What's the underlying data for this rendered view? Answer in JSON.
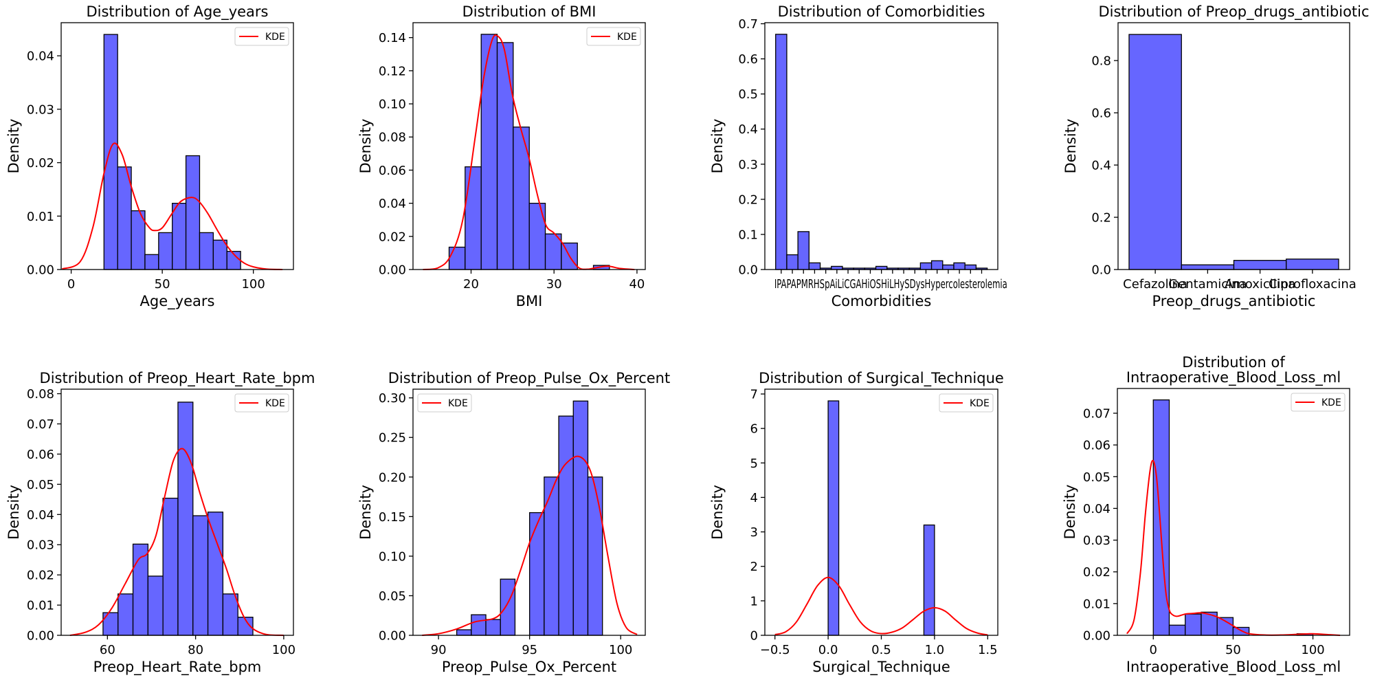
{
  "figure": {
    "background": "#ffffff",
    "bar_color": "#6666ff",
    "kde_color": "#ff0000"
  },
  "chart_data": [
    {
      "id": "age",
      "type": "bar",
      "title": [
        "Distribution of Age_years"
      ],
      "xlabel": "Age_years",
      "ylabel": "Density",
      "xlim": [
        -5.5,
        122
      ],
      "ylim": [
        0,
        0.0462
      ],
      "xticks": [
        0,
        50,
        100
      ],
      "xticklabels": [
        "0",
        "50",
        "100"
      ],
      "yticks": [
        0,
        0.01,
        0.02,
        0.03,
        0.04
      ],
      "yticklabels": [
        "0.00",
        "0.01",
        "0.02",
        "0.03",
        "0.04"
      ],
      "bin_edges": [
        18,
        25.5,
        33,
        40.5,
        48,
        55.5,
        63,
        70.5,
        78,
        85.5,
        93
      ],
      "values": [
        0.044,
        0.0192,
        0.011,
        0.0028,
        0.0069,
        0.0124,
        0.0213,
        0.0069,
        0.0055,
        0.0034
      ],
      "kde": {
        "x": [
          -5,
          5,
          12,
          18,
          23,
          28,
          33,
          38,
          43,
          46,
          50,
          55,
          60,
          66,
          70,
          75,
          80,
          85,
          90,
          95,
          100,
          107,
          116
        ],
        "y": [
          0.0001,
          0.0015,
          0.008,
          0.018,
          0.0235,
          0.0215,
          0.0155,
          0.0105,
          0.0078,
          0.0073,
          0.0078,
          0.0103,
          0.0127,
          0.0135,
          0.0128,
          0.0105,
          0.0075,
          0.0047,
          0.0026,
          0.0012,
          0.0005,
          0.0001,
          0.0
        ]
      },
      "legend": {
        "label": "KDE",
        "position": "upper right"
      }
    },
    {
      "id": "bmi",
      "type": "bar",
      "title": [
        "Distribution of BMI"
      ],
      "xlabel": "BMI",
      "ylabel": "Density",
      "xlim": [
        13,
        41
      ],
      "ylim": [
        0,
        0.149
      ],
      "xticks": [
        20,
        30,
        40
      ],
      "xticklabels": [
        "20",
        "30",
        "40"
      ],
      "yticks": [
        0,
        0.02,
        0.04,
        0.06,
        0.08,
        0.1,
        0.12,
        0.14
      ],
      "yticklabels": [
        "0.00",
        "0.02",
        "0.04",
        "0.06",
        "0.08",
        "0.10",
        "0.12",
        "0.14"
      ],
      "bin_edges": [
        17.35,
        19.28,
        21.22,
        23.15,
        25.08,
        27.02,
        28.95,
        30.88,
        32.82,
        34.75,
        36.68
      ],
      "values": [
        0.0135,
        0.062,
        0.142,
        0.137,
        0.086,
        0.04,
        0.0215,
        0.016,
        0,
        0.0025
      ],
      "kde": {
        "x": [
          14.2,
          16,
          17.5,
          19,
          20.5,
          21.5,
          22.5,
          23.2,
          24,
          25,
          26,
          27,
          28,
          29,
          30,
          31,
          32,
          33,
          34,
          35,
          36.5,
          38,
          39.7
        ],
        "y": [
          0,
          0.001,
          0.008,
          0.03,
          0.08,
          0.115,
          0.138,
          0.141,
          0.133,
          0.105,
          0.085,
          0.067,
          0.045,
          0.027,
          0.022,
          0.016,
          0.007,
          0.001,
          0.0002,
          0.001,
          0.002,
          0.0006,
          0
        ]
      },
      "legend": {
        "label": "KDE",
        "position": "upper right"
      }
    },
    {
      "id": "comorbidities",
      "type": "bar",
      "title": [
        "Distribution of Comorbidities"
      ],
      "xlabel": "Comorbidities",
      "ylabel": "Density",
      "xlim": [
        -1.47,
        19.45
      ],
      "ylim": [
        0,
        0.703
      ],
      "xticks": [
        0,
        1,
        2,
        3,
        4,
        5,
        6,
        7,
        8,
        9,
        10,
        11,
        12,
        13,
        14,
        15,
        16,
        17,
        18
      ],
      "xticklabels_note": "19 overlapping category labels, illegible; visible fragments start with 'IP' / 'AP' and end with '...lesterolemia'",
      "xticklabels_visible": "IPAPAPMRHSpAiLiCGAHiOSHiLHySDysHypercolesterolemia",
      "yticks": [
        0,
        0.1,
        0.2,
        0.3,
        0.4,
        0.5,
        0.6,
        0.7
      ],
      "yticklabels": [
        "0.0",
        "0.1",
        "0.2",
        "0.3",
        "0.4",
        "0.5",
        "0.6",
        "0.7"
      ],
      "bin_edges": [
        -0.5,
        0.5,
        1.5,
        2.5,
        3.5,
        4.5,
        5.5,
        6.5,
        7.5,
        8.5,
        9.5,
        10.5,
        11.5,
        12.5,
        13.5,
        14.5,
        15.5,
        16.5,
        17.5,
        18.5
      ],
      "values": [
        0.67,
        0.042,
        0.108,
        0.019,
        0.004,
        0.009,
        0.004,
        0.004,
        0.004,
        0.009,
        0.004,
        0.004,
        0.004,
        0.019,
        0.025,
        0.013,
        0.019,
        0.013,
        0.004
      ]
    },
    {
      "id": "antibiotic",
      "type": "bar",
      "title": [
        "Distribution of Preop_drugs_antibiotic"
      ],
      "xlabel": "Preop_drugs_antibiotic",
      "ylabel": "Density",
      "xlim": [
        -0.71,
        3.71
      ],
      "ylim": [
        0,
        0.945
      ],
      "xticks": [
        0,
        1,
        2,
        3
      ],
      "xticklabels": [
        "Cefazolina",
        "Gentamicina",
        "Amoxicilina",
        "Ciprofloxacina"
      ],
      "yticks": [
        0,
        0.2,
        0.4,
        0.6,
        0.8
      ],
      "yticklabels": [
        "0.0",
        "0.2",
        "0.4",
        "0.6",
        "0.8"
      ],
      "bin_edges": [
        -0.5,
        0.5,
        1.5,
        2.5,
        3.5
      ],
      "values": [
        0.9,
        0.018,
        0.035,
        0.04
      ]
    },
    {
      "id": "heart_rate",
      "type": "bar",
      "title": [
        "Distribution of Preop_Heart_Rate_bpm"
      ],
      "xlabel": "Preop_Heart_Rate_bpm",
      "ylabel": "Density",
      "xlim": [
        49.5,
        102.2
      ],
      "ylim": [
        0,
        0.0815
      ],
      "xticks": [
        60,
        80,
        100
      ],
      "xticklabels": [
        "60",
        "80",
        "100"
      ],
      "yticks": [
        0,
        0.01,
        0.02,
        0.03,
        0.04,
        0.05,
        0.06,
        0.07,
        0.08
      ],
      "yticklabels": [
        "0.00",
        "0.01",
        "0.02",
        "0.03",
        "0.04",
        "0.05",
        "0.06",
        "0.07",
        "0.08"
      ],
      "bin_edges": [
        59,
        62.4,
        65.8,
        69.2,
        72.6,
        76,
        79.4,
        82.8,
        86.2,
        89.6,
        93
      ],
      "values": [
        0.0075,
        0.0137,
        0.0302,
        0.0196,
        0.0454,
        0.0772,
        0.0396,
        0.0408,
        0.0137,
        0.006
      ],
      "kde": {
        "x": [
          51.5,
          55,
          58,
          61,
          64,
          67,
          69,
          71,
          73,
          75,
          77,
          79,
          81,
          83,
          85,
          87,
          89,
          91,
          93,
          96,
          100
        ],
        "y": [
          0,
          0.001,
          0.0035,
          0.009,
          0.017,
          0.025,
          0.027,
          0.033,
          0.046,
          0.058,
          0.0618,
          0.057,
          0.047,
          0.038,
          0.03,
          0.022,
          0.013,
          0.006,
          0.0022,
          0.0003,
          0
        ]
      },
      "legend": {
        "label": "KDE",
        "position": "upper right"
      }
    },
    {
      "id": "pulse_ox",
      "type": "bar",
      "title": [
        "Distribution of Preop_Pulse_Ox_Percent"
      ],
      "xlabel": "Preop_Pulse_Ox_Percent",
      "ylabel": "Density",
      "xlim": [
        88.6,
        101.35
      ],
      "ylim": [
        0,
        0.311
      ],
      "xticks": [
        90,
        95,
        100
      ],
      "xticklabels": [
        "90",
        "95",
        "100"
      ],
      "yticks": [
        0,
        0.05,
        0.1,
        0.15,
        0.2,
        0.25,
        0.3
      ],
      "yticklabels": [
        "0.00",
        "0.05",
        "0.10",
        "0.15",
        "0.20",
        "0.25",
        "0.30"
      ],
      "bin_edges": [
        91,
        91.8,
        92.6,
        93.4,
        94.2,
        95,
        95.8,
        96.6,
        97.4,
        98.2,
        99
      ],
      "values": [
        0.007,
        0.026,
        0.02,
        0.071,
        0,
        0.155,
        0.2,
        0.277,
        0.296,
        0.2
      ],
      "kde": {
        "x": [
          89.1,
          90,
          91,
          92,
          93,
          93.5,
          94,
          94.5,
          95,
          95.5,
          96,
          96.5,
          97,
          97.7,
          98.3,
          98.8,
          99.3,
          99.8,
          100.3,
          100.9
        ],
        "y": [
          0,
          0.002,
          0.008,
          0.017,
          0.021,
          0.03,
          0.05,
          0.082,
          0.117,
          0.145,
          0.17,
          0.198,
          0.217,
          0.226,
          0.21,
          0.165,
          0.1,
          0.04,
          0.01,
          0.001
        ]
      },
      "legend": {
        "label": "KDE",
        "position": "upper left"
      }
    },
    {
      "id": "surgical_technique",
      "type": "bar",
      "title": [
        "Distribution of Surgical_Technique"
      ],
      "xlabel": "Surgical_Technique",
      "ylabel": "Density",
      "xlim": [
        -0.595,
        1.595
      ],
      "ylim": [
        0,
        7.14
      ],
      "xticks": [
        -0.5,
        0,
        0.5,
        1.0,
        1.5
      ],
      "xticklabels": [
        "−0.5",
        "0.0",
        "0.5",
        "1.0",
        "1.5"
      ],
      "yticks": [
        0,
        1,
        2,
        3,
        4,
        5,
        6,
        7
      ],
      "yticklabels": [
        "0",
        "1",
        "2",
        "3",
        "4",
        "5",
        "6",
        "7"
      ],
      "bin_edges": [
        0,
        0.1,
        0.2,
        0.3,
        0.4,
        0.5,
        0.6,
        0.7,
        0.8,
        0.9,
        1.0
      ],
      "values": [
        6.8,
        0,
        0,
        0,
        0,
        0,
        0,
        0,
        0,
        3.2
      ],
      "kde": {
        "x": [
          -0.5,
          -0.4,
          -0.3,
          -0.2,
          -0.1,
          0,
          0.1,
          0.2,
          0.3,
          0.4,
          0.5,
          0.6,
          0.7,
          0.8,
          0.9,
          1.0,
          1.1,
          1.2,
          1.3,
          1.4,
          1.5
        ],
        "y": [
          0.02,
          0.1,
          0.38,
          0.9,
          1.44,
          1.68,
          1.44,
          0.9,
          0.4,
          0.13,
          0.05,
          0.09,
          0.22,
          0.46,
          0.7,
          0.8,
          0.7,
          0.44,
          0.2,
          0.07,
          0.01
        ]
      },
      "legend": {
        "label": "KDE",
        "position": "upper right"
      }
    },
    {
      "id": "blood_loss",
      "type": "bar",
      "title": [
        "Distribution of",
        "Intraoperative_Blood_Loss_ml"
      ],
      "xlabel": "Intraoperative_Blood_Loss_ml",
      "ylabel": "Density",
      "xlim": [
        -22.5,
        123
      ],
      "ylim": [
        0,
        0.0778
      ],
      "xticks": [
        0,
        50,
        100
      ],
      "xticklabels": [
        "0",
        "50",
        "100"
      ],
      "yticks": [
        0,
        0.01,
        0.02,
        0.03,
        0.04,
        0.05,
        0.06,
        0.07
      ],
      "yticklabels": [
        "0.00",
        "0.01",
        "0.02",
        "0.03",
        "0.04",
        "0.05",
        "0.06",
        "0.07"
      ],
      "bin_edges": [
        0,
        10,
        20,
        30,
        40,
        50,
        60,
        70,
        80,
        90,
        100
      ],
      "values": [
        0.0742,
        0.0032,
        0.0067,
        0.0073,
        0.0056,
        0.0025,
        0,
        0,
        0,
        0.0005
      ],
      "kde": {
        "x": [
          -16.5,
          -12,
          -8,
          -5,
          -2,
          0,
          2,
          4,
          6,
          8,
          10,
          12,
          15,
          20,
          25,
          30,
          35,
          40,
          45,
          50,
          55,
          60,
          70,
          80,
          90,
          100,
          110,
          117
        ],
        "y": [
          0.0005,
          0.005,
          0.02,
          0.038,
          0.052,
          0.055,
          0.05,
          0.038,
          0.024,
          0.013,
          0.008,
          0.0065,
          0.006,
          0.0067,
          0.0069,
          0.0071,
          0.0066,
          0.0058,
          0.0045,
          0.003,
          0.0015,
          0.0005,
          0.0001,
          0.0001,
          0.0003,
          0.0005,
          0.0002,
          0
        ]
      },
      "legend": {
        "label": "KDE",
        "position": "upper right"
      }
    }
  ]
}
